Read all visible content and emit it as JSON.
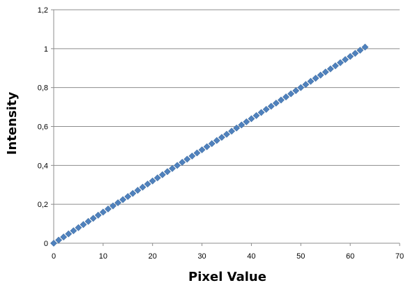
{
  "chart_data": {
    "type": "scatter",
    "title": "",
    "xlabel": "Pixel Value",
    "ylabel": "Intensity",
    "xlim": [
      0,
      70
    ],
    "ylim": [
      0,
      1.2
    ],
    "x_ticks": [
      "0",
      "10",
      "20",
      "30",
      "40",
      "50",
      "60",
      "70"
    ],
    "y_ticks": [
      "0",
      "0,2",
      "0,4",
      "0,6",
      "0,8",
      "1",
      "1,2"
    ],
    "grid": "horizontal",
    "legend": "none",
    "marker": "diamond",
    "colors": {
      "marker": "#4f81bd",
      "gridline": "#8c8c8c",
      "axis": "#8c8c8c"
    },
    "series": [
      {
        "x": [
          0,
          1,
          2,
          3,
          4,
          5,
          6,
          7,
          8,
          9,
          10,
          11,
          12,
          13,
          14,
          15,
          16,
          17,
          18,
          19,
          20,
          21,
          22,
          23,
          24,
          25,
          26,
          27,
          28,
          29,
          30,
          31,
          32,
          33,
          34,
          35,
          36,
          37,
          38,
          39,
          40,
          41,
          42,
          43,
          44,
          45,
          46,
          47,
          48,
          49,
          50,
          51,
          52,
          53,
          54,
          55,
          56,
          57,
          58,
          59,
          60,
          61,
          62,
          63
        ],
        "y": [
          0,
          0.016,
          0.032,
          0.048,
          0.064,
          0.08,
          0.096,
          0.112,
          0.128,
          0.144,
          0.16,
          0.176,
          0.192,
          0.208,
          0.224,
          0.24,
          0.256,
          0.272,
          0.288,
          0.304,
          0.32,
          0.336,
          0.352,
          0.368,
          0.384,
          0.4,
          0.416,
          0.432,
          0.448,
          0.464,
          0.48,
          0.496,
          0.512,
          0.528,
          0.544,
          0.56,
          0.576,
          0.592,
          0.608,
          0.624,
          0.64,
          0.656,
          0.672,
          0.688,
          0.704,
          0.72,
          0.736,
          0.752,
          0.768,
          0.784,
          0.8,
          0.816,
          0.832,
          0.848,
          0.864,
          0.88,
          0.896,
          0.912,
          0.928,
          0.944,
          0.96,
          0.976,
          0.992,
          1.008
        ]
      }
    ]
  }
}
